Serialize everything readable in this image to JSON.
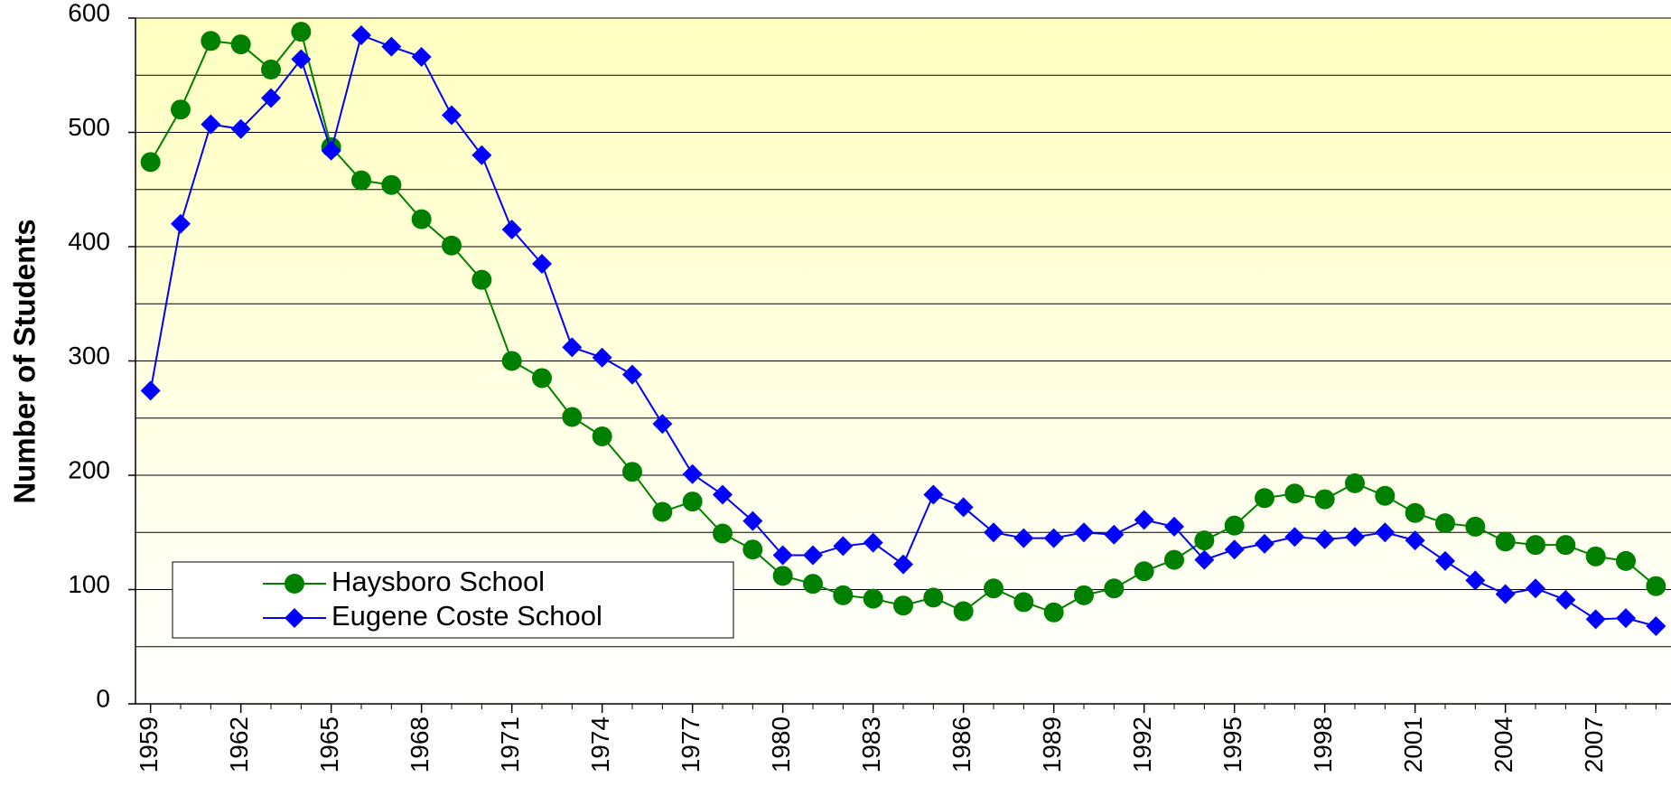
{
  "chart_data": {
    "type": "line",
    "ylabel": "Number of Students",
    "x": [
      1959,
      1960,
      1961,
      1962,
      1963,
      1964,
      1965,
      1966,
      1967,
      1968,
      1969,
      1970,
      1971,
      1972,
      1973,
      1974,
      1975,
      1976,
      1977,
      1978,
      1979,
      1980,
      1981,
      1982,
      1983,
      1984,
      1985,
      1986,
      1987,
      1988,
      1989,
      1990,
      1991,
      1992,
      1993,
      1994,
      1995,
      1996,
      1997,
      1998,
      1999,
      2000,
      2001,
      2002,
      2003,
      2004,
      2005,
      2006,
      2007,
      2008,
      2009
    ],
    "series": [
      {
        "name": "Haysboro School",
        "color": "#008000",
        "marker": "circle",
        "values": [
          474,
          520,
          580,
          577,
          555,
          588,
          487,
          458,
          454,
          424,
          401,
          371,
          300,
          285,
          251,
          234,
          203,
          168,
          177,
          149,
          135,
          112,
          105,
          95,
          92,
          86,
          93,
          81,
          101,
          89,
          80,
          95,
          101,
          116,
          126,
          143,
          156,
          180,
          184,
          179,
          193,
          182,
          167,
          158,
          155,
          142,
          139,
          139,
          129,
          125,
          103
        ]
      },
      {
        "name": "Eugene Coste School",
        "color": "#0000ff",
        "marker": "diamond",
        "values": [
          274,
          420,
          507,
          503,
          530,
          564,
          484,
          585,
          575,
          566,
          515,
          480,
          415,
          385,
          312,
          303,
          288,
          245,
          201,
          183,
          160,
          130,
          130,
          138,
          141,
          122,
          183,
          172,
          150,
          145,
          145,
          150,
          148,
          161,
          155,
          126,
          135,
          140,
          146,
          144,
          146,
          150,
          143,
          125,
          108,
          96,
          101,
          91,
          74,
          75,
          68
        ]
      }
    ],
    "xlim": [
      1958.5,
      2009.5
    ],
    "xticks": [
      1959,
      1962,
      1965,
      1968,
      1971,
      1974,
      1977,
      1980,
      1983,
      1986,
      1989,
      1992,
      1995,
      1998,
      2001,
      2004,
      2007
    ],
    "ylim": [
      0,
      600
    ],
    "yticks": [
      0,
      100,
      200,
      300,
      400,
      500,
      600
    ],
    "minor_yticks": [
      50,
      150,
      250,
      350,
      450,
      550
    ],
    "grid": true,
    "legend": "lower left"
  }
}
